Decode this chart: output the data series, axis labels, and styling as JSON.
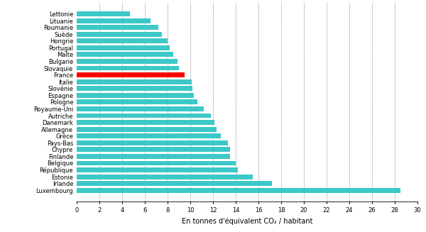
{
  "countries": [
    "Luxembourg",
    "Irlande",
    "Estonie",
    "République",
    "Belgique",
    "Finlande",
    "Chypre",
    "Pays-Bas",
    "Grèce",
    "Allemagne",
    "Danemark",
    "Autriche",
    "Royaume-Uni",
    "Pologne",
    "Espagne",
    "Slovénie",
    "Italie",
    "France",
    "Slovaquie",
    "Bulgarie",
    "Malte",
    "Portugal",
    "Hongrie",
    "Suède",
    "Roumanie",
    "Lituanie",
    "Lettonie"
  ],
  "values": [
    28.5,
    17.2,
    15.5,
    14.2,
    14.0,
    13.5,
    13.5,
    13.3,
    12.7,
    12.3,
    12.1,
    11.8,
    11.2,
    10.6,
    10.3,
    10.2,
    10.1,
    9.5,
    9.0,
    8.9,
    8.5,
    8.2,
    8.0,
    7.5,
    7.2,
    6.5,
    4.7
  ],
  "bar_color": "#3dc8c8",
  "highlight_country": "France",
  "highlight_color": "#ff0000",
  "xlabel": "En tonnes d'équivalent CO₂ / habitant",
  "xlim": [
    0,
    30
  ],
  "xticks": [
    0,
    2,
    4,
    6,
    8,
    10,
    12,
    14,
    16,
    18,
    20,
    22,
    24,
    26,
    28,
    30
  ],
  "background_color": "#ffffff",
  "grid_color": "#999999",
  "tick_label_fontsize": 6,
  "xlabel_fontsize": 7
}
